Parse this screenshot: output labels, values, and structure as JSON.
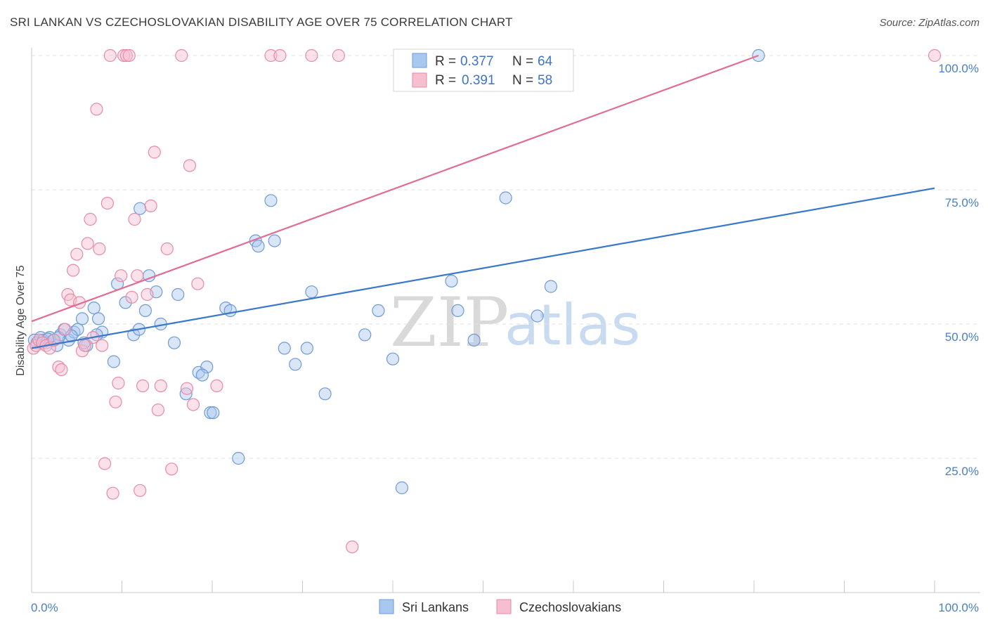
{
  "title": "SRI LANKAN VS CZECHOSLOVAKIAN DISABILITY AGE OVER 75 CORRELATION CHART",
  "source": "Source: ZipAtlas.com",
  "watermark": {
    "zip": "ZIP",
    "atlas": "atlas"
  },
  "legend": {
    "items": [
      {
        "r_label": "R =",
        "r_value": "0.377",
        "n_label": "N =",
        "n_value": "64",
        "color": "#a9c8f0",
        "stroke": "#6f9ad8"
      },
      {
        "r_label": "R =",
        "r_value": "0.391",
        "n_label": "N =",
        "n_value": "58",
        "color": "#f6bfd0",
        "stroke": "#e88aa8"
      }
    ]
  },
  "bottom_legend": [
    "Sri Lankans",
    "Czechoslovakians"
  ],
  "chart_data": {
    "type": "scatter",
    "title": "SRI LANKAN VS CZECHOSLOVAKIAN DISABILITY AGE OVER 75 CORRELATION CHART",
    "xlabel": "",
    "ylabel": "Disability Age Over 75",
    "xlim": [
      0,
      100
    ],
    "ylim": [
      0,
      100
    ],
    "x_tick_labels": [
      "0.0%",
      "100.0%"
    ],
    "y_tick_labels": [
      "25.0%",
      "50.0%",
      "75.0%",
      "100.0%"
    ],
    "y_ticks": [
      25,
      50,
      75,
      100
    ],
    "grid": true,
    "series": [
      {
        "name": "Sri Lankans",
        "color": "#6f9ad8",
        "fill": "#a9c8f0",
        "line_color": "#3a78c9",
        "trend": [
          [
            0,
            45.5
          ],
          [
            100,
            75.3
          ]
        ],
        "points": [
          [
            0.3,
            47
          ],
          [
            0.6,
            46.5
          ],
          [
            1.0,
            47.5
          ],
          [
            1.3,
            47
          ],
          [
            1.6,
            46.5
          ],
          [
            2.0,
            47.5
          ],
          [
            2.4,
            47
          ],
          [
            2.8,
            46
          ],
          [
            3.2,
            48
          ],
          [
            3.6,
            49
          ],
          [
            4.1,
            47
          ],
          [
            4.7,
            48.5
          ],
          [
            5.1,
            49
          ],
          [
            5.6,
            51
          ],
          [
            6.1,
            46
          ],
          [
            6.9,
            53
          ],
          [
            7.4,
            51
          ],
          [
            7.8,
            48.5
          ],
          [
            9.5,
            57.5
          ],
          [
            10.4,
            54
          ],
          [
            11.3,
            48
          ],
          [
            11.9,
            49
          ],
          [
            12.6,
            52.5
          ],
          [
            13.0,
            59
          ],
          [
            13.8,
            56
          ],
          [
            14.3,
            50
          ],
          [
            15.8,
            46.5
          ],
          [
            16.2,
            55.5
          ],
          [
            17.1,
            37
          ],
          [
            18.5,
            41
          ],
          [
            19.4,
            42
          ],
          [
            18.9,
            40.5
          ],
          [
            19.8,
            33.5
          ],
          [
            20.1,
            33.5
          ],
          [
            21.5,
            53
          ],
          [
            22.0,
            52.5
          ],
          [
            22.9,
            25
          ],
          [
            24.8,
            65.5
          ],
          [
            25.1,
            64.5
          ],
          [
            26.5,
            73
          ],
          [
            26.9,
            65.5
          ],
          [
            28.0,
            45.5
          ],
          [
            29.2,
            42.5
          ],
          [
            30.5,
            45.5
          ],
          [
            31.0,
            56
          ],
          [
            32.5,
            37
          ],
          [
            36.9,
            48
          ],
          [
            38.4,
            52.5
          ],
          [
            40.0,
            43.5
          ],
          [
            41.0,
            19.5
          ],
          [
            46.5,
            58
          ],
          [
            47.2,
            52.5
          ],
          [
            49.0,
            47
          ],
          [
            52.5,
            73.5
          ],
          [
            56.0,
            51.5
          ],
          [
            57.5,
            57
          ],
          [
            80.5,
            100
          ],
          [
            7.2,
            48
          ],
          [
            5.8,
            46.5
          ],
          [
            9.1,
            43
          ],
          [
            12.0,
            71.5
          ],
          [
            3.0,
            47.5
          ],
          [
            1.8,
            47.2
          ],
          [
            4.4,
            47.8
          ]
        ]
      },
      {
        "name": "Czechoslovakians",
        "color": "#e88aa8",
        "fill": "#f6bfd0",
        "line_color": "#e06d96",
        "trend": [
          [
            0,
            50.5
          ],
          [
            80.5,
            100
          ]
        ],
        "points": [
          [
            0.2,
            45.5
          ],
          [
            0.5,
            46
          ],
          [
            0.8,
            47
          ],
          [
            1.2,
            46.5
          ],
          [
            1.6,
            46
          ],
          [
            2.0,
            45.5
          ],
          [
            2.5,
            47
          ],
          [
            3.0,
            42
          ],
          [
            3.3,
            41.5
          ],
          [
            3.7,
            49
          ],
          [
            4.0,
            55.5
          ],
          [
            4.3,
            54.5
          ],
          [
            4.6,
            60
          ],
          [
            5.0,
            63
          ],
          [
            5.3,
            54
          ],
          [
            5.6,
            45
          ],
          [
            5.9,
            46
          ],
          [
            6.2,
            65
          ],
          [
            6.5,
            69.5
          ],
          [
            6.8,
            47.5
          ],
          [
            7.2,
            90
          ],
          [
            7.5,
            64
          ],
          [
            7.8,
            46
          ],
          [
            8.1,
            24
          ],
          [
            8.4,
            72.5
          ],
          [
            8.7,
            100
          ],
          [
            9.0,
            18.5
          ],
          [
            9.3,
            35.5
          ],
          [
            9.6,
            39
          ],
          [
            9.9,
            59
          ],
          [
            10.2,
            100
          ],
          [
            10.5,
            100
          ],
          [
            10.8,
            100
          ],
          [
            11.1,
            55
          ],
          [
            11.4,
            69.5
          ],
          [
            11.7,
            59
          ],
          [
            12.0,
            19
          ],
          [
            12.3,
            38.5
          ],
          [
            12.8,
            55.5
          ],
          [
            13.2,
            72
          ],
          [
            13.6,
            82
          ],
          [
            14.0,
            34
          ],
          [
            14.3,
            38.5
          ],
          [
            15.0,
            64
          ],
          [
            15.5,
            23
          ],
          [
            16.6,
            100
          ],
          [
            17.2,
            38
          ],
          [
            17.5,
            79.5
          ],
          [
            17.9,
            35
          ],
          [
            18.4,
            57.5
          ],
          [
            20.5,
            38.5
          ],
          [
            26.5,
            100
          ],
          [
            27.5,
            100
          ],
          [
            31.0,
            100
          ],
          [
            34.0,
            100
          ],
          [
            35.5,
            8.5
          ],
          [
            45.0,
            94.5
          ],
          [
            100,
            100
          ]
        ]
      }
    ]
  }
}
